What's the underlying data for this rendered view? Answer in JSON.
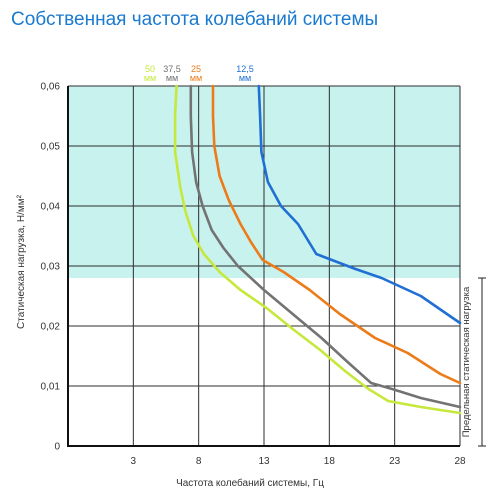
{
  "chart_data": {
    "type": "line",
    "title": "Собственная частота колебаний системы",
    "xlabel": "Частота колебаний системы, Гц",
    "ylabel": "Статическая нагрузка, Н/мм²",
    "xlim": [
      -2,
      28
    ],
    "ylim": [
      0,
      0.06
    ],
    "xticks": [
      "3",
      "8",
      "13",
      "18",
      "23",
      "28"
    ],
    "yticks": [
      "0",
      "0,01",
      "0,02",
      "0,03",
      "0,04",
      "0,05",
      "0,06"
    ],
    "grid": true,
    "shaded_zone": {
      "y_from": 0.028,
      "y_to": 0.06,
      "color": "#c8f2ee"
    },
    "limit_bracket": {
      "label": "Предельная статическая нагрузка",
      "y_from": 0,
      "y_to": 0.028
    },
    "series": [
      {
        "name": "50",
        "unit": "мм",
        "color": "#c6e83c",
        "points": [
          [
            6.3,
            0.06
          ],
          [
            6.2,
            0.055
          ],
          [
            6.2,
            0.049
          ],
          [
            6.6,
            0.043
          ],
          [
            7.0,
            0.039
          ],
          [
            7.6,
            0.035
          ],
          [
            8.4,
            0.032
          ],
          [
            9.6,
            0.029
          ],
          [
            11.2,
            0.026
          ],
          [
            13.2,
            0.023
          ],
          [
            15.2,
            0.0195
          ],
          [
            17.3,
            0.016
          ],
          [
            19.2,
            0.0125
          ],
          [
            21.0,
            0.0095
          ],
          [
            22.5,
            0.0075
          ],
          [
            25,
            0.0065
          ],
          [
            28,
            0.0055
          ]
        ]
      },
      {
        "name": "37,5",
        "unit": "мм",
        "color": "#737373",
        "points": [
          [
            7.4,
            0.06
          ],
          [
            7.4,
            0.055
          ],
          [
            7.5,
            0.049
          ],
          [
            7.8,
            0.044
          ],
          [
            8.3,
            0.04
          ],
          [
            9.0,
            0.036
          ],
          [
            9.9,
            0.033
          ],
          [
            11.0,
            0.03
          ],
          [
            13.0,
            0.026
          ],
          [
            15.2,
            0.022
          ],
          [
            17.4,
            0.018
          ],
          [
            19.4,
            0.014
          ],
          [
            21.2,
            0.0105
          ],
          [
            22.8,
            0.0095
          ],
          [
            25,
            0.008
          ],
          [
            28,
            0.0065
          ]
        ]
      },
      {
        "name": "25",
        "unit": "мм",
        "color": "#ec7b1a",
        "points": [
          [
            9.1,
            0.06
          ],
          [
            9.1,
            0.055
          ],
          [
            9.2,
            0.05
          ],
          [
            9.6,
            0.045
          ],
          [
            10.3,
            0.041
          ],
          [
            11.2,
            0.037
          ],
          [
            12.0,
            0.034
          ],
          [
            12.9,
            0.031
          ],
          [
            14.5,
            0.029
          ],
          [
            16.5,
            0.026
          ],
          [
            18.8,
            0.022
          ],
          [
            21.5,
            0.018
          ],
          [
            24.0,
            0.0155
          ],
          [
            26.5,
            0.012
          ],
          [
            28,
            0.0105
          ]
        ]
      },
      {
        "name": "12,5",
        "unit": "мм",
        "color": "#1f6fd4",
        "points": [
          [
            12.6,
            0.06
          ],
          [
            12.7,
            0.055
          ],
          [
            12.8,
            0.049
          ],
          [
            13.3,
            0.044
          ],
          [
            14.3,
            0.04
          ],
          [
            15.6,
            0.037
          ],
          [
            17.0,
            0.032
          ],
          [
            18.2,
            0.031
          ],
          [
            20.0,
            0.0295
          ],
          [
            22.0,
            0.028
          ],
          [
            25.0,
            0.025
          ],
          [
            28,
            0.0205
          ]
        ]
      }
    ]
  }
}
